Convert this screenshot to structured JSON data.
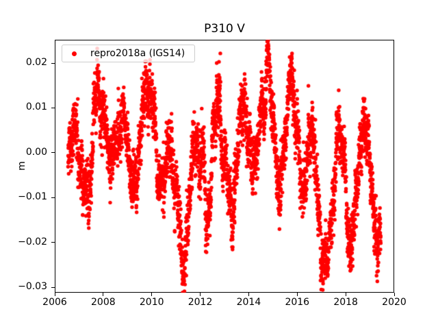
{
  "chart_data": {
    "type": "scatter",
    "title": "P310 V",
    "xlabel": "",
    "ylabel": "m",
    "grid": false,
    "xlim": [
      2006,
      2020
    ],
    "ylim": [
      -0.0312,
      0.0252
    ],
    "xticks": {
      "values": [
        2006,
        2008,
        2010,
        2012,
        2014,
        2016,
        2018,
        2020
      ],
      "labels": [
        "2006",
        "2008",
        "2010",
        "2012",
        "2014",
        "2016",
        "2018",
        "2020"
      ]
    },
    "yticks": {
      "values": [
        0.02,
        0.01,
        0.0,
        -0.01,
        -0.02,
        -0.03
      ],
      "labels": [
        "0.02",
        "0.01",
        "0.00",
        "−0.01",
        "−0.02",
        "−0.03"
      ]
    },
    "legend": {
      "label": "repro2018a (IGS14)",
      "marker": "dot",
      "color": "#ff0000",
      "position": "upper-left"
    },
    "series": [
      {
        "name": "repro2018a (IGS14)",
        "color": "#ff0000",
        "marker": "dot",
        "marker_radius_px": 2.7,
        "t_start": 2006.55,
        "t_end": 2019.45,
        "t_step": 0.0035,
        "noise_std": 0.0028,
        "walk_std": 0.0009,
        "walk_decay": 0.97,
        "outlier_prob": 0.008,
        "outlier_min": 0.003,
        "outlier_max": 0.009,
        "seed": 42,
        "mean_control_points": [
          [
            2006.55,
            -0.0015
          ],
          [
            2006.8,
            0.0065
          ],
          [
            2007.05,
            -0.002
          ],
          [
            2007.3,
            -0.0085
          ],
          [
            2007.8,
            0.0075
          ],
          [
            2008.3,
            -0.007
          ],
          [
            2008.8,
            0.009
          ],
          [
            2009.3,
            -0.0075
          ],
          [
            2009.85,
            0.0075
          ],
          [
            2010.05,
            0.0075
          ],
          [
            2010.4,
            -0.011
          ],
          [
            2010.75,
            0.002
          ],
          [
            2011.0,
            -0.003
          ],
          [
            2011.25,
            -0.019
          ],
          [
            2011.55,
            -0.009
          ],
          [
            2011.8,
            0.003
          ],
          [
            2012.3,
            -0.011
          ],
          [
            2012.65,
            0.007
          ],
          [
            2013.25,
            -0.0095
          ],
          [
            2013.8,
            0.0065
          ],
          [
            2014.15,
            0.0
          ],
          [
            2014.85,
            0.013
          ],
          [
            2015.3,
            -0.007
          ],
          [
            2015.75,
            0.0145
          ],
          [
            2016.25,
            -0.006
          ],
          [
            2016.55,
            0.009
          ],
          [
            2017.15,
            -0.023
          ],
          [
            2017.75,
            0.003
          ],
          [
            2018.25,
            -0.017
          ],
          [
            2018.8,
            0.0045
          ],
          [
            2019.3,
            -0.022
          ],
          [
            2019.45,
            -0.01
          ]
        ]
      }
    ],
    "notable_outlier_points": [
      [
        2012.68,
        0.02
      ],
      [
        2014.8,
        0.0223
      ],
      [
        2015.78,
        0.021
      ],
      [
        2011.28,
        -0.025
      ],
      [
        2011.42,
        -0.0239
      ]
    ]
  }
}
